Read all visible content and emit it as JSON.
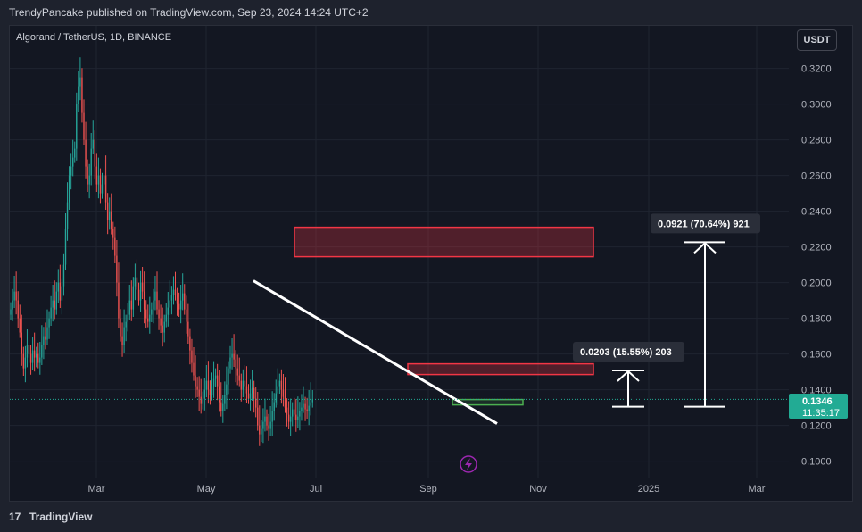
{
  "header": {
    "publish_line": "TrendyPancake published on TradingView.com, Sep 23, 2024 14:24 UTC+2"
  },
  "symbol_line": "Algorand / TetherUS, 1D, BINANCE",
  "currency_button": "USDT",
  "footer": {
    "brand": "TradingView",
    "logo_glyph": "17"
  },
  "current_price": {
    "value": "0.1346",
    "countdown": "11:35:17"
  },
  "annotations": {
    "measure_small": "0.0203 (15.55%) 203",
    "measure_large": "0.0921 (70.64%) 921"
  },
  "colors": {
    "up": "#26a69a",
    "down": "#ef5350",
    "zone_red": "#f23645",
    "zone_green": "#4caf50",
    "price_tag": "#22ab94"
  },
  "chart_data": {
    "type": "candlestick",
    "y_ticks": [
      "0.3200",
      "0.3000",
      "0.2800",
      "0.2600",
      "0.2400",
      "0.2200",
      "0.2000",
      "0.1800",
      "0.1600",
      "0.1400",
      "0.1200",
      "0.1000"
    ],
    "x_ticks": [
      "Mar",
      "May",
      "Jul",
      "Sep",
      "Nov",
      "2025",
      "Mar"
    ],
    "ylim": [
      0.09,
      0.335
    ],
    "closes": [
      0.185,
      0.19,
      0.195,
      0.19,
      0.18,
      0.172,
      0.16,
      0.152,
      0.158,
      0.165,
      0.16,
      0.155,
      0.162,
      0.158,
      0.16,
      0.155,
      0.158,
      0.165,
      0.17,
      0.168,
      0.175,
      0.18,
      0.186,
      0.19,
      0.185,
      0.195,
      0.2,
      0.19,
      0.198,
      0.21,
      0.23,
      0.245,
      0.26,
      0.265,
      0.27,
      0.275,
      0.3,
      0.31,
      0.315,
      0.295,
      0.28,
      0.265,
      0.255,
      0.26,
      0.275,
      0.28,
      0.265,
      0.255,
      0.26,
      0.25,
      0.255,
      0.26,
      0.245,
      0.235,
      0.24,
      0.23,
      0.225,
      0.215,
      0.2,
      0.18,
      0.17,
      0.165,
      0.175,
      0.178,
      0.182,
      0.19,
      0.185,
      0.198,
      0.203,
      0.196,
      0.19,
      0.2,
      0.195,
      0.185,
      0.18,
      0.178,
      0.182,
      0.185,
      0.19,
      0.195,
      0.185,
      0.18,
      0.176,
      0.172,
      0.178,
      0.182,
      0.186,
      0.19,
      0.193,
      0.196,
      0.193,
      0.188,
      0.185,
      0.19,
      0.194,
      0.185,
      0.178,
      0.17,
      0.162,
      0.155,
      0.148,
      0.142,
      0.14,
      0.136,
      0.132,
      0.135,
      0.14,
      0.145,
      0.14,
      0.137,
      0.142,
      0.146,
      0.148,
      0.142,
      0.133,
      0.128,
      0.132,
      0.137,
      0.143,
      0.152,
      0.158,
      0.16,
      0.157,
      0.152,
      0.148,
      0.145,
      0.14,
      0.145,
      0.142,
      0.138,
      0.135,
      0.138,
      0.141,
      0.135,
      0.13,
      0.12,
      0.115,
      0.118,
      0.122,
      0.125,
      0.12,
      0.118,
      0.122,
      0.128,
      0.133,
      0.138,
      0.142,
      0.145,
      0.14,
      0.136,
      0.13,
      0.126,
      0.122,
      0.125,
      0.129,
      0.126,
      0.123,
      0.125,
      0.128,
      0.13,
      0.132,
      0.129,
      0.128,
      0.131,
      0.133,
      0.1346
    ],
    "trendline": {
      "start_price": 0.201,
      "end_price": 0.121
    },
    "zones": [
      {
        "type": "resistance",
        "top": 0.231,
        "bottom": 0.2145
      },
      {
        "type": "resistance",
        "top": 0.1545,
        "bottom": 0.1485
      },
      {
        "type": "support",
        "top": 0.1345,
        "bottom": 0.1315
      }
    ],
    "measures": [
      {
        "from": 0.1305,
        "to": 0.1508,
        "label": "0.0203 (15.55%) 203"
      },
      {
        "from": 0.1305,
        "to": 0.2226,
        "label": "0.0921 (70.64%) 921"
      }
    ]
  }
}
